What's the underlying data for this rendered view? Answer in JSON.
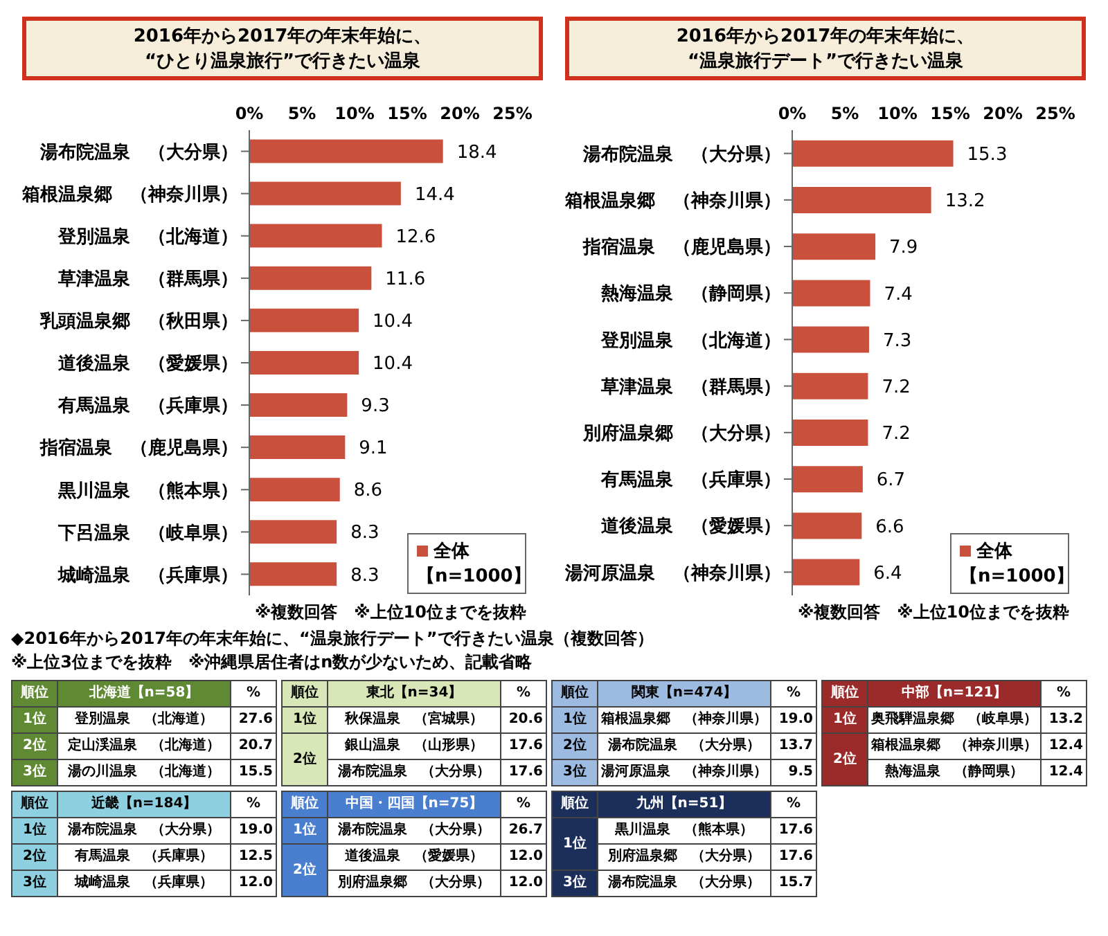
{
  "chart_data": [
    {
      "type": "bar",
      "orientation": "horizontal",
      "title": "2016年から2017年の年末年始に、\n“ひとり温泉旅行”で行きたい温泉",
      "categories": [
        "湯布院温泉　（大分県）",
        "箱根温泉郷　（神奈川県）",
        "登別温泉　（北海道）",
        "草津温泉　（群馬県）",
        "乳頭温泉郷　（秋田県）",
        "道後温泉　（愛媛県）",
        "有馬温泉　（兵庫県）",
        "指宿温泉　（鹿児島県）",
        "黒川温泉　（熊本県）",
        "下呂温泉　（岐阜県）",
        "城崎温泉　（兵庫県）"
      ],
      "series": [
        {
          "name": "全体【n=1000】",
          "color": "#c9503c",
          "values": [
            18.4,
            14.4,
            12.6,
            11.6,
            10.4,
            10.4,
            9.3,
            9.1,
            8.6,
            8.3,
            8.3
          ]
        }
      ],
      "xlim": [
        0,
        25
      ],
      "xticks": [
        {
          "value": 0,
          "label": "0%"
        },
        {
          "value": 5,
          "label": "5%"
        },
        {
          "value": 10,
          "label": "10%"
        },
        {
          "value": 15,
          "label": "15%"
        },
        {
          "value": 20,
          "label": "20%"
        },
        {
          "value": 25,
          "label": "25%"
        }
      ],
      "data_labels": true,
      "legend": "bottom right",
      "annotations": [
        "※複数回答　※上位10位までを抜粋"
      ]
    },
    {
      "type": "bar",
      "orientation": "horizontal",
      "title": "2016年から2017年の年末年始に、\n“温泉旅行デート”で行きたい温泉",
      "categories": [
        "湯布院温泉　（大分県）",
        "箱根温泉郷　（神奈川県）",
        "指宿温泉　（鹿児島県）",
        "熱海温泉　（静岡県）",
        "登別温泉　（北海道）",
        "草津温泉　（群馬県）",
        "別府温泉郷　（大分県）",
        "有馬温泉　（兵庫県）",
        "道後温泉　（愛媛県）",
        "湯河原温泉　（神奈川県）"
      ],
      "series": [
        {
          "name": "全体【n=1000】",
          "color": "#c9503c",
          "values": [
            15.3,
            13.2,
            7.9,
            7.4,
            7.3,
            7.2,
            7.2,
            6.7,
            6.6,
            6.4
          ]
        }
      ],
      "xlim": [
        0,
        25
      ],
      "xticks": [
        {
          "value": 0,
          "label": "0%"
        },
        {
          "value": 5,
          "label": "5%"
        },
        {
          "value": 10,
          "label": "10%"
        },
        {
          "value": 15,
          "label": "15%"
        },
        {
          "value": 20,
          "label": "20%"
        },
        {
          "value": 25,
          "label": "25%"
        }
      ],
      "data_labels": true,
      "legend": "bottom right",
      "annotations": [
        "※複数回答　※上位10位までを抜粋"
      ]
    },
    {
      "type": "other",
      "title": "◆2016年から2017年の年末年始に、“温泉旅行デート”で行きたい温泉（複数回答）",
      "annotations": [
        "※上位3位までを抜粋　※沖縄県居住者はn数が少ないため、記載省略"
      ]
    },
    {
      "type": "other",
      "title": "北海道【n=58】",
      "color": "#5f8a33",
      "ylabel": "順位",
      "xlabel": "%",
      "y_categories": [
        "1位",
        "2位",
        "3位"
      ],
      "categories": [
        "登別温泉　（北海道）",
        "定山渓温泉　（北海道）",
        "湯の川温泉　（北海道）"
      ],
      "value_labels": [
        "27.6",
        "20.7",
        "15.5"
      ]
    },
    {
      "type": "other",
      "title": "東北【n=34】",
      "color": "#d8e6b8",
      "ylabel": "順位",
      "xlabel": "%",
      "y_categories": [
        "1位",
        "2位",
        null
      ],
      "categories": [
        "秋保温泉　（宮城県）",
        "銀山温泉　（山形県）",
        "湯布院温泉　（大分県）"
      ],
      "value_labels": [
        "20.6",
        "17.6",
        "17.6"
      ]
    },
    {
      "type": "other",
      "title": "関東【n=474】",
      "color": "#9dbbe0",
      "ylabel": "順位",
      "xlabel": "%",
      "y_categories": [
        "1位",
        "2位",
        "3位"
      ],
      "categories": [
        "箱根温泉郷　（神奈川県）",
        "湯布院温泉　（大分県）",
        "湯河原温泉　（神奈川県）"
      ],
      "value_labels": [
        "19.0",
        "13.7",
        "9.5"
      ]
    },
    {
      "type": "other",
      "title": "中部【n=121】",
      "color": "#9b2a2a",
      "ylabel": "順位",
      "xlabel": "%",
      "y_categories": [
        "1位",
        "2位",
        null
      ],
      "categories": [
        "奥飛騨温泉郷　（岐阜県）",
        "箱根温泉郷　（神奈川県）",
        "熱海温泉　（静岡県）"
      ],
      "value_labels": [
        "13.2",
        "12.4",
        "12.4"
      ]
    },
    {
      "type": "other",
      "title": "近畿【n=184】",
      "color": "#8fd0e0",
      "ylabel": "順位",
      "xlabel": "%",
      "y_categories": [
        "1位",
        "2位",
        "3位"
      ],
      "categories": [
        "湯布院温泉　（大分県）",
        "有馬温泉　（兵庫県）",
        "城崎温泉　（兵庫県）"
      ],
      "value_labels": [
        "19.0",
        "12.5",
        "12.0"
      ]
    },
    {
      "type": "other",
      "title": "中国・四国【n=75】",
      "color": "#4a7fcf",
      "ylabel": "順位",
      "xlabel": "%",
      "y_categories": [
        "1位",
        "2位",
        null
      ],
      "categories": [
        "湯布院温泉　（大分県）",
        "道後温泉　（愛媛県）",
        "別府温泉郷　（大分県）"
      ],
      "value_labels": [
        "26.7",
        "12.0",
        "12.0"
      ]
    },
    {
      "type": "other",
      "title": "九州【n=51】",
      "color": "#1c2f5a",
      "ylabel": "順位",
      "xlabel": "%",
      "y_categories": [
        "1位",
        null,
        "3位"
      ],
      "categories": [
        "黒川温泉　（熊本県）",
        "別府温泉郷　（大分県）",
        "湯布院温泉　（大分県）"
      ],
      "value_labels": [
        "17.6",
        "17.6",
        "15.7"
      ]
    }
  ]
}
